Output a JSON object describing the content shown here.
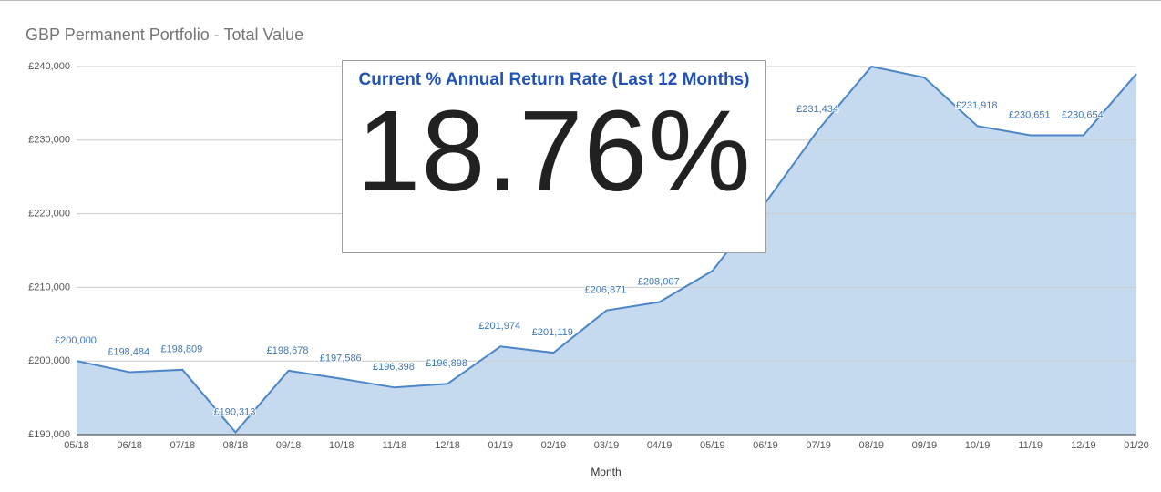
{
  "chart_data": {
    "type": "area",
    "title": "GBP Permanent Portfolio - Total Value",
    "x_label": "Month",
    "categories": [
      "05/18",
      "06/18",
      "07/18",
      "08/18",
      "09/18",
      "10/18",
      "11/18",
      "12/18",
      "01/19",
      "02/19",
      "03/19",
      "04/19",
      "05/19",
      "06/19",
      "07/19",
      "08/19",
      "09/19",
      "10/19",
      "11/19",
      "12/19",
      "01/20"
    ],
    "series": [
      {
        "name": "Total Value",
        "color": "#4a86c8",
        "fill": "#c6daef",
        "values": [
          200000,
          198484,
          198809,
          190313,
          198678,
          197586,
          196398,
          196898,
          201974,
          201119,
          206871,
          208007,
          212245,
          221481,
          231434,
          240000,
          238500,
          231918,
          230651,
          230654,
          239000
        ],
        "value_labels": [
          "£200,000",
          "£198,484",
          "£198,809",
          "£190,313",
          "£198,678",
          "£197,586",
          "£196,398",
          "£196,898",
          "£201,974",
          "£201,119",
          "£206,871",
          "£208,007",
          null,
          null,
          "£231,434",
          null,
          null,
          "£231,918",
          "£230,651",
          "£230,654",
          null
        ]
      }
    ],
    "ylim": [
      190000,
      240000
    ],
    "yticks": [
      {
        "value": 190000,
        "label": "£190,000"
      },
      {
        "value": 200000,
        "label": "£200,000"
      },
      {
        "value": 210000,
        "label": "£210,000"
      },
      {
        "value": 220000,
        "label": "£220,000"
      },
      {
        "value": 230000,
        "label": "£230,000"
      },
      {
        "value": 240000,
        "label": "£240,000"
      }
    ],
    "grid": true,
    "scorecard": {
      "title": "Current % Annual Return Rate (Last 12 Months)",
      "value": "18.76%"
    }
  }
}
